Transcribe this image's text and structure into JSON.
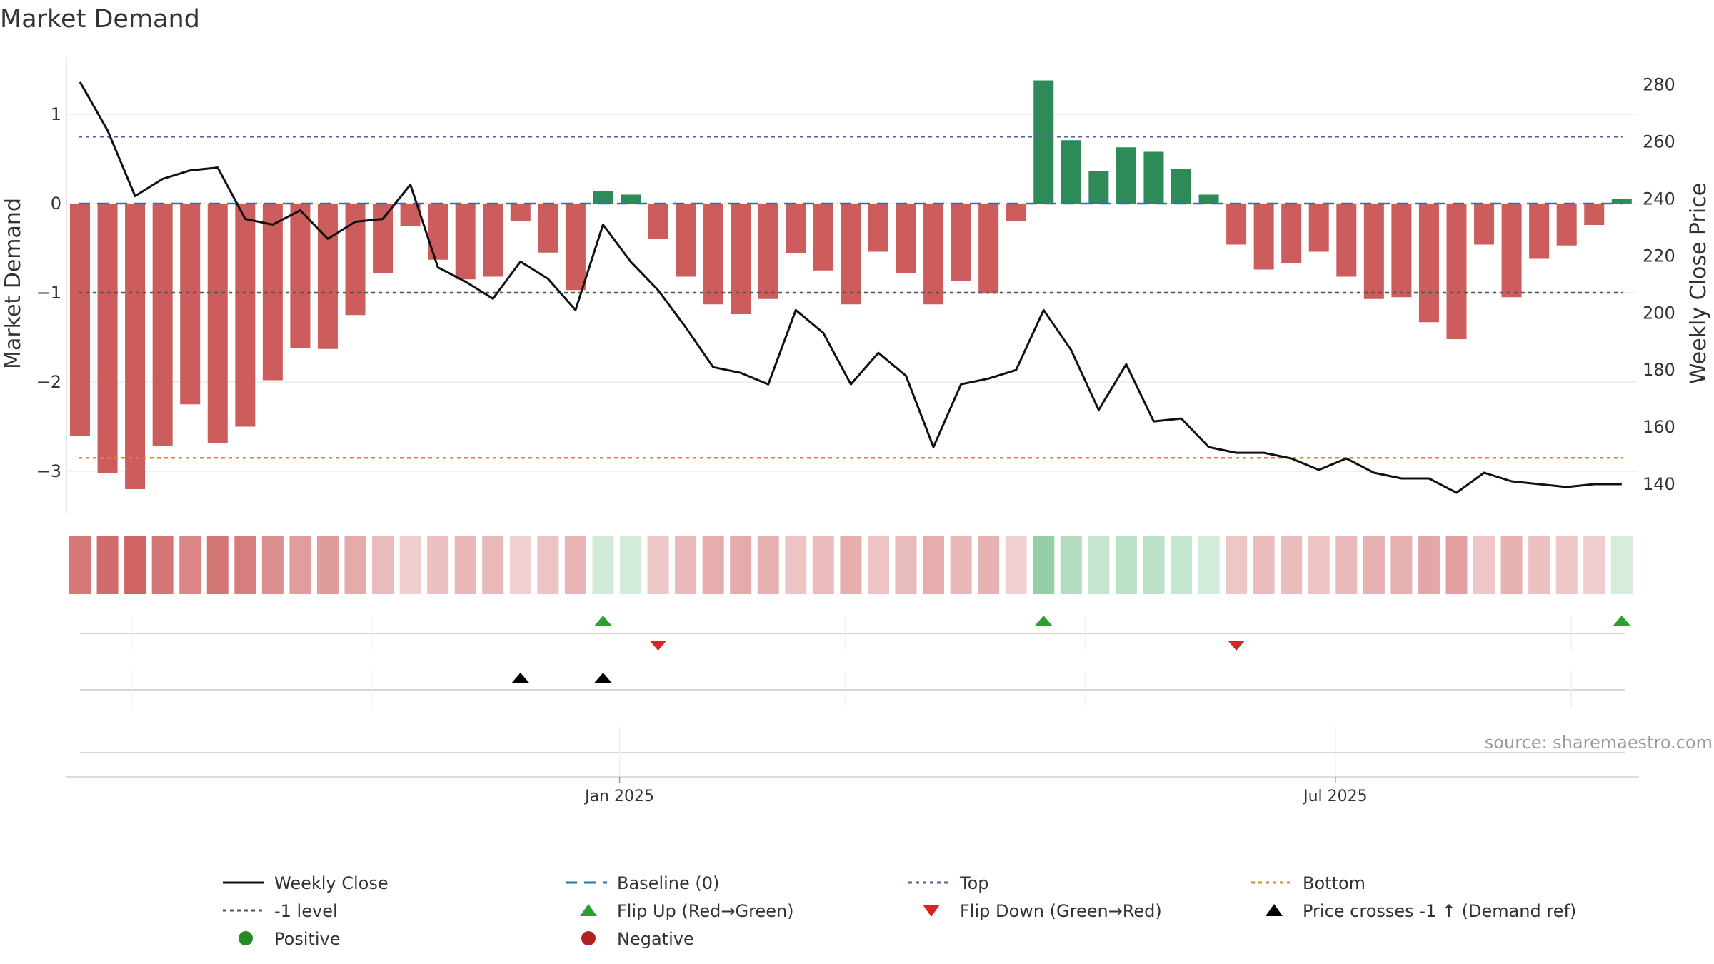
{
  "chart_data": {
    "type": "bar",
    "title": "Market Demand",
    "ylabel_left": "Market Demand",
    "ylabel_right": "Weekly Close Price",
    "source": "source: sharemaestro.com",
    "left_axis": {
      "ylim": [
        -3.5,
        1.6
      ],
      "ticks": [
        1,
        0,
        -1,
        -2,
        -3
      ],
      "tick_labels": [
        "1",
        "0",
        "−1",
        "−2",
        "−3"
      ]
    },
    "right_axis": {
      "ylim": [
        130,
        284
      ],
      "ticks": [
        280,
        260,
        240,
        220,
        200,
        180,
        160,
        140
      ],
      "tick_labels": [
        "280",
        "260",
        "240",
        "220",
        "200",
        "180",
        "160",
        "140"
      ]
    },
    "x_ticks": [
      {
        "index": 19.6,
        "label": "Jan 2025"
      },
      {
        "index": 45.6,
        "label": "Jul 2025"
      }
    ],
    "reference_lines": {
      "baseline": 0,
      "top": 0.75,
      "bottom": -2.85,
      "minus_one": -1
    },
    "demand": [
      -2.6,
      -3.02,
      -3.2,
      -2.72,
      -2.25,
      -2.68,
      -2.5,
      -1.98,
      -1.62,
      -1.63,
      -1.25,
      -0.78,
      -0.25,
      -0.63,
      -0.85,
      -0.82,
      -0.2,
      -0.55,
      -0.97,
      0.14,
      0.1,
      -0.4,
      -0.82,
      -1.13,
      -1.24,
      -1.07,
      -0.56,
      -0.75,
      -1.13,
      -0.54,
      -0.78,
      -1.13,
      -0.87,
      -1.01,
      -0.2,
      1.38,
      0.71,
      0.36,
      0.63,
      0.58,
      0.39,
      0.1,
      -0.46,
      -0.74,
      -0.67,
      -0.54,
      -0.82,
      -1.07,
      -1.05,
      -1.33,
      -1.52,
      -0.46,
      -1.05,
      -0.62,
      -0.47,
      -0.24,
      0.05
    ],
    "weekly_close": [
      281,
      264,
      241,
      247,
      250,
      251,
      233,
      231,
      236,
      226,
      232,
      233,
      245,
      216,
      211,
      205,
      218,
      212,
      201,
      231,
      218,
      208,
      195,
      181,
      179,
      175,
      201,
      193,
      175,
      186,
      178,
      153,
      175,
      177,
      180,
      201,
      187,
      166,
      182,
      162,
      163,
      153,
      151,
      151,
      149,
      145,
      149,
      144,
      142,
      142,
      137,
      144,
      141,
      140,
      139,
      140,
      140
    ],
    "flip_up_indices": [
      19,
      35,
      56
    ],
    "flip_down_indices": [
      21,
      42
    ],
    "price_cross_indices": [
      16,
      19
    ],
    "legend": [
      {
        "label": "Weekly Close",
        "kind": "line-solid",
        "color": "#111111"
      },
      {
        "label": "Baseline (0)",
        "kind": "line-dashed",
        "color": "#1f77b4"
      },
      {
        "label": "Top",
        "kind": "line-dotted",
        "color": "#5a5aa8"
      },
      {
        "label": "Bottom",
        "kind": "line-dotted",
        "color": "#e08a1e"
      },
      {
        "label": "-1 level",
        "kind": "line-dotted",
        "color": "#555555"
      },
      {
        "label": "Flip Up (Red→Green)",
        "kind": "triangle-up",
        "color": "#2ca02c"
      },
      {
        "label": "Flip Down (Green→Red)",
        "kind": "triangle-down",
        "color": "#d62728"
      },
      {
        "label": "Price crosses -1 ↑ (Demand ref)",
        "kind": "triangle-up",
        "color": "#000000"
      },
      {
        "label": "Positive",
        "kind": "dot",
        "color": "#228b22"
      },
      {
        "label": "Negative",
        "kind": "dot",
        "color": "#b22222"
      }
    ],
    "colors": {
      "negative_bar": "#cd5c5c",
      "positive_bar": "#2e8b57",
      "price_line": "#111111",
      "heat_negative": "#cd5c5c",
      "heat_positive": "#4caf6a"
    }
  }
}
